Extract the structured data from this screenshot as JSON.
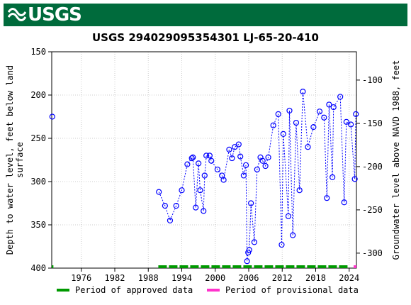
{
  "header": {
    "logo_text": "USGS",
    "logo_icon": "usgs-wave-icon"
  },
  "colors": {
    "banner": "#006b3c",
    "series": "#0000ff",
    "approved": "#009900",
    "provisional": "#ff33cc",
    "grid": "#cccccc"
  },
  "legend": {
    "approved": "Period of approved data",
    "provisional": "Period of provisional data"
  },
  "chart_data": {
    "type": "scatter",
    "title": "USGS 294029095354301 LJ-65-20-410",
    "ylabel": "Depth to water level, feet below land surface",
    "y2label": "Groundwater level above NAVD 1988, feet",
    "xlim": [
      1970.7,
      2025.3
    ],
    "ylim": [
      400,
      150
    ],
    "y2lim": [
      -317.3,
      -67.3
    ],
    "y_inverted": true,
    "grid": true,
    "x_ticks": [
      1976,
      1982,
      1988,
      1994,
      2000,
      2006,
      2012,
      2018,
      2024
    ],
    "y_ticks": [
      150,
      200,
      250,
      300,
      350,
      400
    ],
    "y2_ticks": [
      -100,
      -150,
      -200,
      -250,
      -300
    ],
    "series": [
      {
        "name": "",
        "marker": "open-circle",
        "line": "dotted",
        "points": [
          [
            1970.8,
            225
          ],
          [
            1989.9,
            312
          ],
          [
            1991.0,
            328
          ],
          [
            1991.9,
            345
          ],
          [
            1993.0,
            328
          ],
          [
            1994.0,
            310
          ],
          [
            1995.0,
            280
          ],
          [
            1995.8,
            273
          ],
          [
            1996.0,
            272
          ],
          [
            1996.5,
            330
          ],
          [
            1997.0,
            279
          ],
          [
            1997.3,
            310
          ],
          [
            1997.9,
            334
          ],
          [
            1998.1,
            293
          ],
          [
            1998.4,
            270
          ],
          [
            1999.0,
            270
          ],
          [
            1999.3,
            276
          ],
          [
            2000.4,
            286
          ],
          [
            2001.2,
            293
          ],
          [
            2001.5,
            298
          ],
          [
            2002.5,
            263
          ],
          [
            2003.0,
            273
          ],
          [
            2003.5,
            260
          ],
          [
            2004.2,
            257
          ],
          [
            2004.5,
            271
          ],
          [
            2005.1,
            293
          ],
          [
            2005.5,
            281
          ],
          [
            2005.7,
            392
          ],
          [
            2005.9,
            382
          ],
          [
            2006.1,
            379
          ],
          [
            2006.4,
            325
          ],
          [
            2007.0,
            370
          ],
          [
            2007.5,
            286
          ],
          [
            2008.1,
            272
          ],
          [
            2008.5,
            276
          ],
          [
            2009.0,
            282
          ],
          [
            2009.5,
            272
          ],
          [
            2010.4,
            235
          ],
          [
            2011.3,
            222
          ],
          [
            2011.9,
            373
          ],
          [
            2012.2,
            245
          ],
          [
            2013.1,
            340
          ],
          [
            2013.3,
            218
          ],
          [
            2013.9,
            362
          ],
          [
            2014.5,
            232
          ],
          [
            2015.1,
            310
          ],
          [
            2015.7,
            196
          ],
          [
            2016.6,
            260
          ],
          [
            2017.6,
            237
          ],
          [
            2018.7,
            219
          ],
          [
            2019.5,
            226
          ],
          [
            2020.0,
            319
          ],
          [
            2020.4,
            211
          ],
          [
            2021.0,
            295
          ],
          [
            2021.2,
            214
          ],
          [
            2022.4,
            202
          ],
          [
            2023.1,
            324
          ],
          [
            2023.5,
            231
          ],
          [
            2024.3,
            234
          ],
          [
            2025.0,
            297
          ],
          [
            2025.2,
            222
          ]
        ]
      }
    ],
    "approval_periods": {
      "approved": [
        [
          1970.7,
          1971.0
        ],
        [
          1989.8,
          2023.8
        ]
      ],
      "provisional": [
        [
          2024.8,
          2025.3
        ]
      ]
    }
  }
}
